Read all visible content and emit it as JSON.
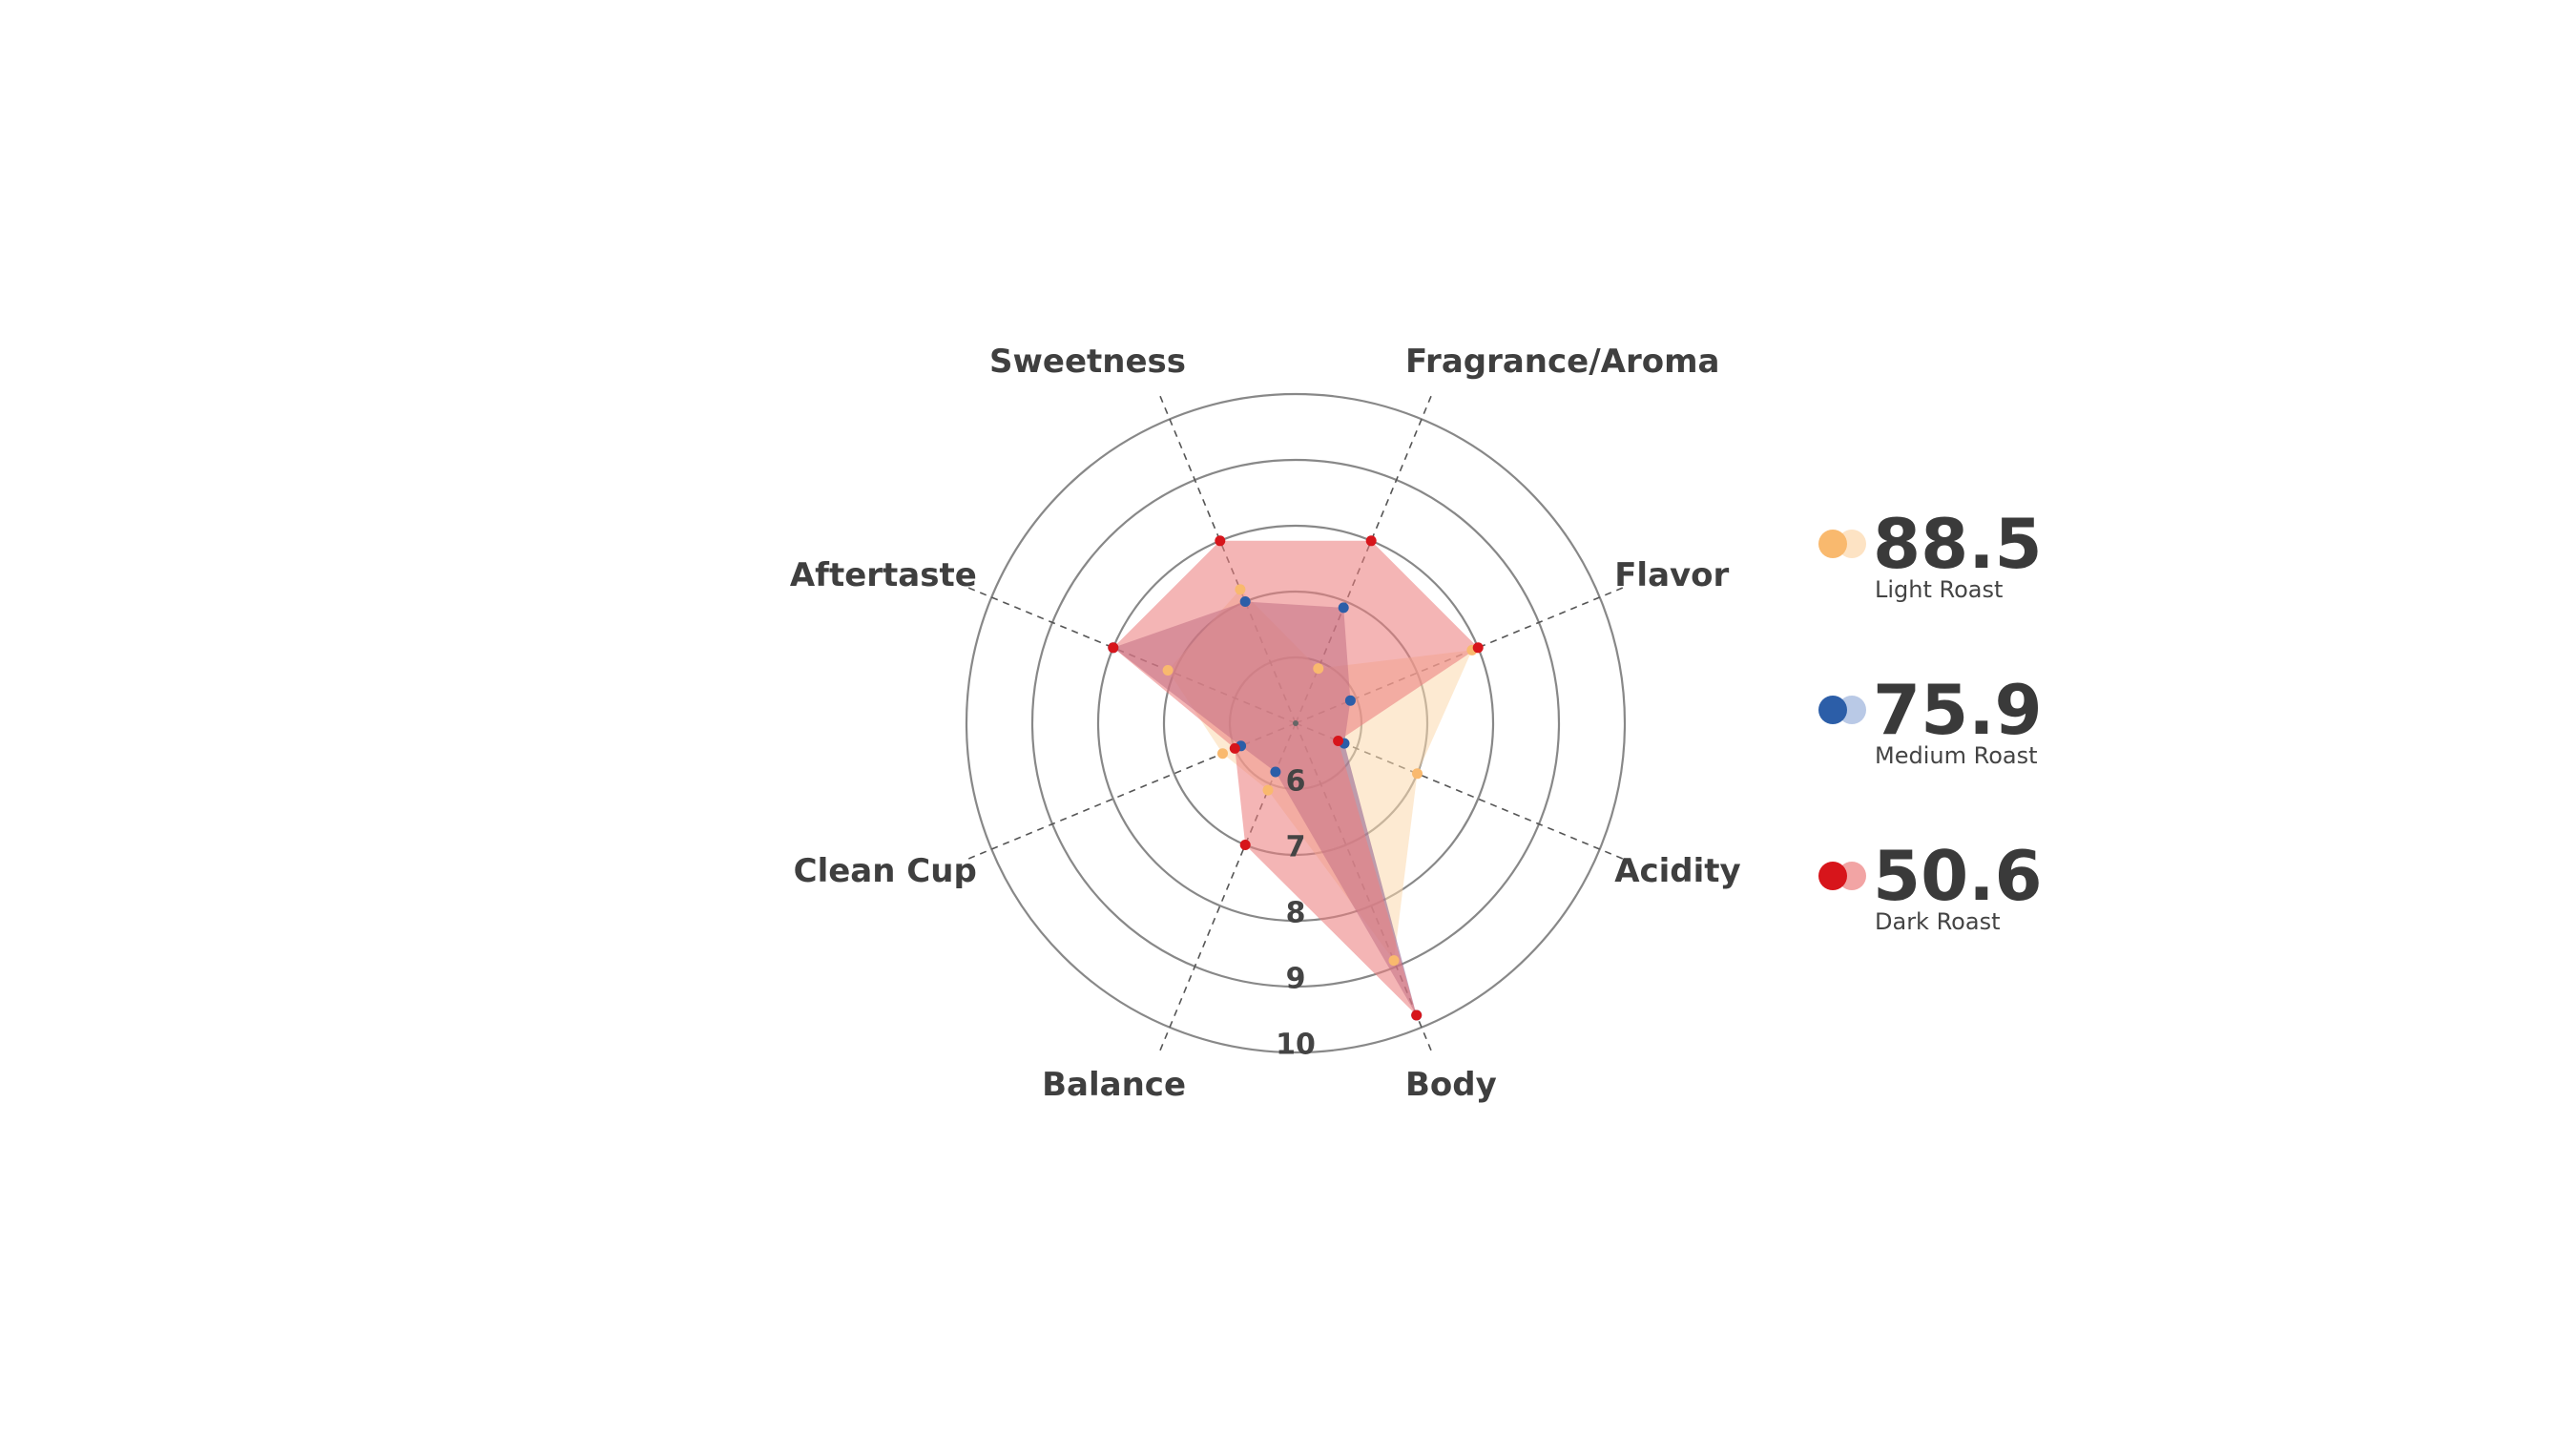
{
  "chart_data": {
    "type": "radar",
    "axes": [
      "Fragrance/Aroma",
      "Flavor",
      "Acidity",
      "Body",
      "Balance",
      "Clean Cup",
      "Aftertaste",
      "Sweetness"
    ],
    "ticks": [
      "6",
      "7",
      "8",
      "9",
      "10"
    ],
    "rmin": 5,
    "rmax": 10,
    "grid": true,
    "legend_position": "right",
    "series": [
      {
        "name": "Light Roast",
        "score": "88.5",
        "values": [
          5.9,
          7.9,
          7.0,
          8.9,
          6.1,
          6.2,
          7.1,
          7.2
        ],
        "color": "#f9b96e",
        "light_color": "#fde3c4"
      },
      {
        "name": "Medium Roast",
        "score": "75.9",
        "values": [
          6.9,
          5.9,
          5.8,
          9.8,
          5.8,
          5.9,
          8.0,
          7.0
        ],
        "color": "#2c5ea8",
        "light_color": "#b9c9e6"
      },
      {
        "name": "Dark Roast",
        "score": "50.6",
        "values": [
          8.0,
          8.0,
          5.7,
          9.8,
          7.0,
          6.0,
          8.0,
          8.0
        ],
        "color": "#d7151b",
        "light_color": "#f2a4a4"
      }
    ]
  }
}
